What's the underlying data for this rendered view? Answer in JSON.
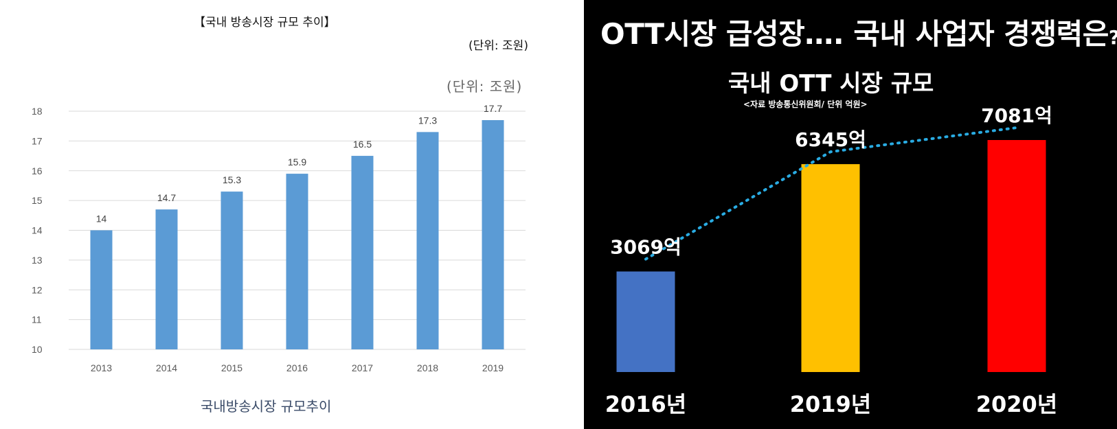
{
  "left_panel": {
    "title": "【국내 방송시장 규모 추이】",
    "unit_top": "(단위: 조원)",
    "unit_chart": "(단위: 조원)",
    "caption": "국내방송시장 규모추이",
    "bar_color": "#5b9bd5"
  },
  "right_panel": {
    "headline": "OTT시장 급성장…. 국내 사업자 경쟁력은",
    "headline_mark": "?",
    "subtitle": "국내 OTT 시장 규모",
    "source": "<자료 방송통신위원회/  단위 억원>",
    "trend_color": "#29abe2"
  },
  "chart_data": [
    {
      "type": "bar",
      "title": "【국내 방송시장 규모 추이】",
      "unit": "(단위: 조원)",
      "categories": [
        "2013",
        "2014",
        "2015",
        "2016",
        "2017",
        "2018",
        "2019"
      ],
      "values": [
        14,
        14.7,
        15.3,
        15.9,
        16.5,
        17.3,
        17.7
      ],
      "value_labels": [
        "14",
        "14.7",
        "15.3",
        "15.9",
        "16.5",
        "17.3",
        "17.7"
      ],
      "y_ticks": [
        "10",
        "11",
        "12",
        "13",
        "14",
        "15",
        "16",
        "17",
        "18"
      ],
      "ylim": [
        10,
        18
      ],
      "grid": true,
      "legend": "none",
      "colors": [
        "#5b9bd5"
      ]
    },
    {
      "type": "bar",
      "title": "국내 OTT 시장 규모",
      "unit": "억원",
      "categories": [
        "2016년",
        "2019년",
        "2020년"
      ],
      "values": [
        3069,
        6345,
        7081
      ],
      "value_labels": [
        "3069억",
        "6345억",
        "7081억"
      ],
      "trend_line": "dotted",
      "grid": false,
      "legend": "none",
      "colors": [
        "#4472c4",
        "#ffc000",
        "#ff0000"
      ]
    }
  ]
}
